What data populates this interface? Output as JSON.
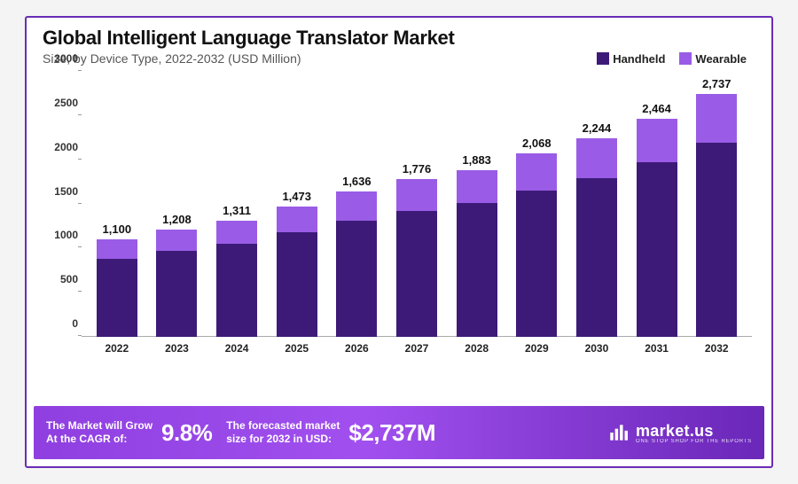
{
  "title": "Global Intelligent Language Translator Market",
  "subtitle": "Size, by Device Type, 2022-2032 (USD Million)",
  "legend": [
    {
      "label": "Handheld",
      "color": "#3d1a78"
    },
    {
      "label": "Wearable",
      "color": "#9a5ce6"
    }
  ],
  "chart": {
    "type": "stacked-bar",
    "ylim": [
      0,
      3000
    ],
    "ytick_step": 500,
    "yticks": [
      0,
      500,
      1000,
      1500,
      2000,
      2500,
      3000
    ],
    "label_fontsize": 12,
    "background_color": "#ffffff",
    "axis_color": "#aaaaaa",
    "bar_width": 0.68,
    "categories": [
      "2022",
      "2023",
      "2024",
      "2025",
      "2026",
      "2027",
      "2028",
      "2029",
      "2030",
      "2031",
      "2032"
    ],
    "totals": [
      1100,
      1208,
      1311,
      1473,
      1636,
      1776,
      1883,
      2068,
      2244,
      2464,
      2737
    ],
    "total_labels": [
      "1,100",
      "1,208",
      "1,311",
      "1,473",
      "1,636",
      "1,776",
      "1,883",
      "2,068",
      "2,244",
      "2,464",
      "2,737"
    ],
    "series": [
      {
        "name": "Handheld",
        "color": "#3d1a78",
        "values": [
          880,
          966,
          1049,
          1178,
          1309,
          1421,
          1506,
          1654,
          1795,
          1971,
          2190
        ]
      },
      {
        "name": "Wearable",
        "color": "#9a5ce6",
        "values": [
          220,
          242,
          262,
          295,
          327,
          355,
          377,
          414,
          449,
          493,
          547
        ]
      }
    ]
  },
  "footer": {
    "cagr_text": "The Market will Grow\nAt the CAGR of:",
    "cagr_value": "9.8%",
    "forecast_text": "The forecasted market\nsize for 2032 in USD:",
    "forecast_value": "$2,737M",
    "brand_name": "market.us",
    "brand_tag": "ONE STOP SHOP FOR THE REPORTS",
    "gradient": [
      "#8f3fe0",
      "#a150ef",
      "#6a27b8"
    ],
    "text_color": "#ffffff"
  },
  "border_color": "#6a2db5"
}
